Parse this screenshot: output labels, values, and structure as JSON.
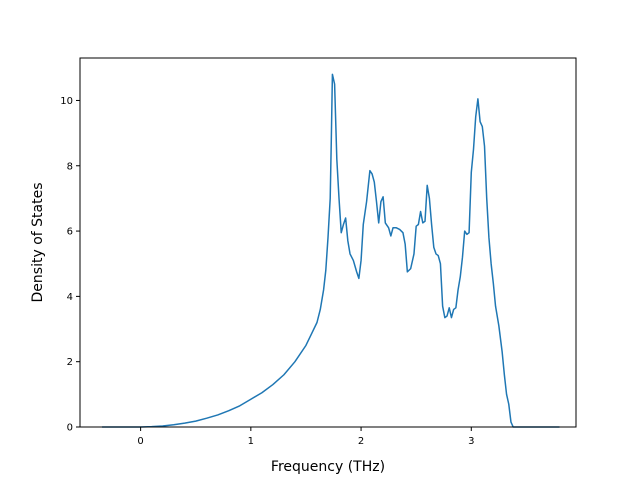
{
  "chart_data": {
    "type": "line",
    "title": "",
    "xlabel": "Frequency (THz)",
    "ylabel": "Density of States",
    "xlim": [
      -0.55,
      3.95
    ],
    "ylim": [
      0,
      11.3
    ],
    "xticks": [
      0,
      1,
      2,
      3
    ],
    "yticks": [
      0,
      2,
      4,
      6,
      8,
      10
    ],
    "grid": false,
    "legend": "none",
    "series": [
      {
        "color": "#1f77b4",
        "points": [
          [
            -0.35,
            0
          ],
          [
            0.0,
            0
          ],
          [
            0.1,
            0.01
          ],
          [
            0.2,
            0.03
          ],
          [
            0.3,
            0.07
          ],
          [
            0.4,
            0.12
          ],
          [
            0.5,
            0.18
          ],
          [
            0.6,
            0.27
          ],
          [
            0.7,
            0.37
          ],
          [
            0.8,
            0.5
          ],
          [
            0.9,
            0.65
          ],
          [
            1.0,
            0.85
          ],
          [
            1.1,
            1.05
          ],
          [
            1.2,
            1.3
          ],
          [
            1.3,
            1.6
          ],
          [
            1.4,
            2.0
          ],
          [
            1.5,
            2.5
          ],
          [
            1.55,
            2.85
          ],
          [
            1.6,
            3.2
          ],
          [
            1.63,
            3.6
          ],
          [
            1.66,
            4.2
          ],
          [
            1.68,
            4.8
          ],
          [
            1.7,
            5.8
          ],
          [
            1.72,
            7.0
          ],
          [
            1.73,
            8.8
          ],
          [
            1.74,
            10.8
          ],
          [
            1.76,
            10.5
          ],
          [
            1.78,
            8.2
          ],
          [
            1.8,
            7.0
          ],
          [
            1.82,
            5.95
          ],
          [
            1.84,
            6.2
          ],
          [
            1.86,
            6.4
          ],
          [
            1.88,
            5.7
          ],
          [
            1.9,
            5.3
          ],
          [
            1.93,
            5.1
          ],
          [
            1.96,
            4.75
          ],
          [
            1.98,
            4.55
          ],
          [
            2.0,
            5.1
          ],
          [
            2.02,
            6.2
          ],
          [
            2.05,
            6.9
          ],
          [
            2.08,
            7.85
          ],
          [
            2.1,
            7.75
          ],
          [
            2.12,
            7.5
          ],
          [
            2.14,
            6.9
          ],
          [
            2.16,
            6.25
          ],
          [
            2.18,
            6.9
          ],
          [
            2.2,
            7.05
          ],
          [
            2.22,
            6.25
          ],
          [
            2.25,
            6.1
          ],
          [
            2.27,
            5.85
          ],
          [
            2.29,
            6.1
          ],
          [
            2.32,
            6.1
          ],
          [
            2.35,
            6.05
          ],
          [
            2.38,
            5.95
          ],
          [
            2.4,
            5.6
          ],
          [
            2.42,
            4.75
          ],
          [
            2.45,
            4.85
          ],
          [
            2.48,
            5.3
          ],
          [
            2.5,
            6.15
          ],
          [
            2.52,
            6.2
          ],
          [
            2.54,
            6.6
          ],
          [
            2.56,
            6.25
          ],
          [
            2.58,
            6.3
          ],
          [
            2.6,
            7.4
          ],
          [
            2.62,
            7.0
          ],
          [
            2.64,
            6.2
          ],
          [
            2.66,
            5.5
          ],
          [
            2.68,
            5.3
          ],
          [
            2.7,
            5.25
          ],
          [
            2.72,
            5.0
          ],
          [
            2.74,
            3.7
          ],
          [
            2.76,
            3.35
          ],
          [
            2.78,
            3.4
          ],
          [
            2.8,
            3.65
          ],
          [
            2.82,
            3.35
          ],
          [
            2.84,
            3.6
          ],
          [
            2.86,
            3.65
          ],
          [
            2.88,
            4.2
          ],
          [
            2.9,
            4.6
          ],
          [
            2.92,
            5.2
          ],
          [
            2.94,
            6.0
          ],
          [
            2.96,
            5.9
          ],
          [
            2.98,
            5.95
          ],
          [
            3.0,
            7.8
          ],
          [
            3.02,
            8.5
          ],
          [
            3.04,
            9.5
          ],
          [
            3.06,
            10.05
          ],
          [
            3.08,
            9.35
          ],
          [
            3.1,
            9.2
          ],
          [
            3.12,
            8.6
          ],
          [
            3.14,
            7.0
          ],
          [
            3.16,
            5.8
          ],
          [
            3.18,
            5.0
          ],
          [
            3.2,
            4.4
          ],
          [
            3.22,
            3.7
          ],
          [
            3.25,
            3.1
          ],
          [
            3.28,
            2.3
          ],
          [
            3.3,
            1.6
          ],
          [
            3.32,
            1.0
          ],
          [
            3.34,
            0.7
          ],
          [
            3.36,
            0.15
          ],
          [
            3.38,
            0.0
          ],
          [
            3.8,
            0.0
          ]
        ]
      }
    ]
  }
}
